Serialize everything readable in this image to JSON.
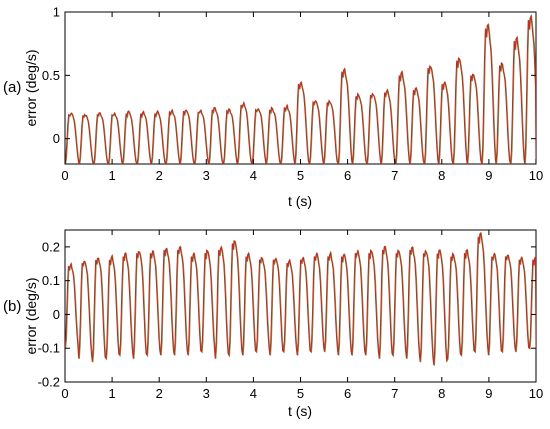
{
  "chart_data": [
    {
      "type": "line",
      "panel_label": "(a)",
      "xlabel": "t (s)",
      "ylabel": "error (deg/s)",
      "xlim": [
        0,
        10
      ],
      "ylim": [
        -0.2,
        1.0
      ],
      "xticks": [
        0,
        1,
        2,
        3,
        4,
        5,
        6,
        7,
        8,
        9,
        10
      ],
      "yticks": [
        0,
        0.5,
        1
      ],
      "ytick_labels": [
        "0",
        "0.5",
        "1"
      ],
      "grid": false,
      "series": [
        {
          "color": "#c62a1c",
          "overlay_color": "#2d7a1f",
          "cycle_period": 0.305,
          "baseline_peak": 0.22,
          "trough": -0.2,
          "x_points": [
            0.0,
            0.3,
            0.61,
            0.92,
            1.22,
            1.53,
            1.83,
            2.14,
            2.44,
            2.75,
            3.05,
            3.36,
            3.66,
            3.97,
            4.27,
            4.58,
            4.88,
            5.19,
            5.49,
            5.8,
            6.1,
            6.41,
            6.71,
            7.02,
            7.32,
            7.63,
            7.93,
            8.24,
            8.54,
            8.85,
            9.15,
            9.46,
            9.76,
            10.0
          ],
          "peak_values": [
            0.2,
            0.19,
            0.2,
            0.2,
            0.21,
            0.21,
            0.21,
            0.22,
            0.23,
            0.22,
            0.24,
            0.23,
            0.28,
            0.24,
            0.24,
            0.26,
            0.45,
            0.3,
            0.3,
            0.55,
            0.35,
            0.36,
            0.38,
            0.52,
            0.4,
            0.58,
            0.45,
            0.64,
            0.52,
            0.9,
            0.6,
            0.8,
            0.97,
            0.55
          ]
        }
      ]
    },
    {
      "type": "line",
      "panel_label": "(b)",
      "xlabel": "t (s)",
      "ylabel": "error (deg/s)",
      "xlim": [
        0,
        10
      ],
      "ylim": [
        -0.2,
        0.25
      ],
      "xticks": [
        0,
        1,
        2,
        3,
        4,
        5,
        6,
        7,
        8,
        9,
        10
      ],
      "yticks": [
        -0.2,
        -0.1,
        0,
        0.1,
        0.2
      ],
      "ytick_labels": [
        "-0.2",
        "-0.1",
        "0",
        "0.1",
        "0.2"
      ],
      "grid": false,
      "series": [
        {
          "color": "#c62a1c",
          "overlay_color": "#2d7a1f",
          "cycle_period": 0.29,
          "x_points": [
            0.0,
            0.29,
            0.58,
            0.87,
            1.16,
            1.45,
            1.74,
            2.03,
            2.32,
            2.61,
            2.9,
            3.19,
            3.48,
            3.77,
            4.06,
            4.35,
            4.64,
            4.93,
            5.22,
            5.51,
            5.8,
            6.09,
            6.38,
            6.67,
            6.96,
            7.25,
            7.54,
            7.83,
            8.12,
            8.41,
            8.7,
            8.99,
            9.28,
            9.57,
            9.86,
            10.0
          ],
          "peak_values": [
            0.15,
            0.16,
            0.17,
            0.17,
            0.18,
            0.19,
            0.19,
            0.2,
            0.2,
            0.18,
            0.19,
            0.2,
            0.22,
            0.18,
            0.17,
            0.17,
            0.16,
            0.17,
            0.18,
            0.18,
            0.18,
            0.19,
            0.19,
            0.2,
            0.19,
            0.2,
            0.19,
            0.19,
            0.18,
            0.19,
            0.24,
            0.18,
            0.18,
            0.17,
            0.17,
            0.15
          ],
          "trough_values": [
            -0.1,
            -0.13,
            -0.14,
            -0.13,
            -0.12,
            -0.13,
            -0.12,
            -0.12,
            -0.12,
            -0.12,
            -0.11,
            -0.13,
            -0.12,
            -0.12,
            -0.11,
            -0.12,
            -0.11,
            -0.12,
            -0.11,
            -0.11,
            -0.12,
            -0.12,
            -0.12,
            -0.13,
            -0.12,
            -0.13,
            -0.14,
            -0.15,
            -0.13,
            -0.12,
            -0.11,
            -0.12,
            -0.11,
            -0.11,
            -0.1,
            -0.1
          ]
        }
      ]
    }
  ]
}
